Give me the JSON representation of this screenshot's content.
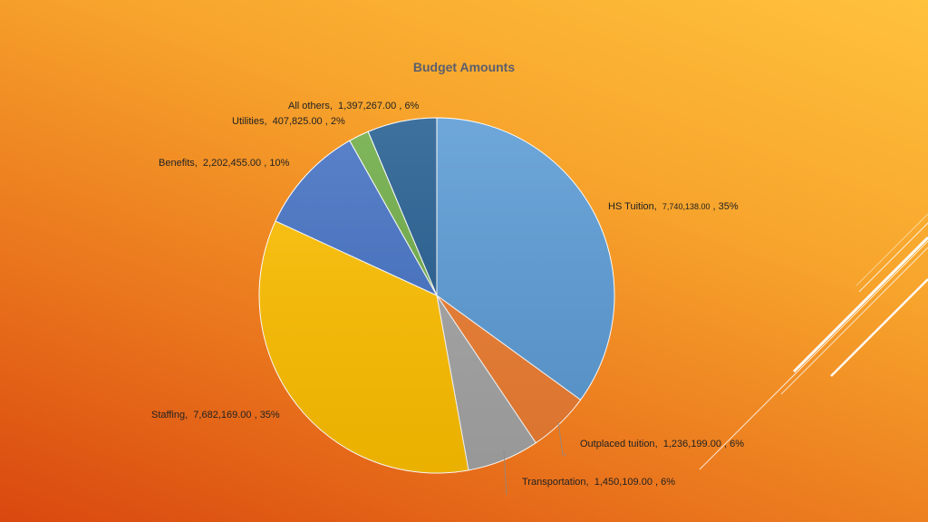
{
  "chart_data": {
    "type": "pie",
    "title": "Budget Amounts",
    "slices": [
      {
        "label": "HS Tuition",
        "value": 7740138.0,
        "value_text": "7,740,138.00",
        "percent_text": "35%",
        "color": "#5b9bd5"
      },
      {
        "label": "Outplaced tuition",
        "value": 1236199.0,
        "value_text": "1,236,199.00",
        "percent_text": "6%",
        "color": "#ed7d31"
      },
      {
        "label": "Transportation",
        "value": 1450109.0,
        "value_text": "1,450,109.00",
        "percent_text": "6%",
        "color": "#a5a5a5"
      },
      {
        "label": "Staffing",
        "value": 7682169.0,
        "value_text": "7,682,169.00",
        "percent_text": "35%",
        "color": "#ffc000"
      },
      {
        "label": "Benefits",
        "value": 2202455.0,
        "value_text": "2,202,455.00",
        "percent_text": "10%",
        "color": "#4472c4"
      },
      {
        "label": "Utilities",
        "value": 407825.0,
        "value_text": "407,825.00",
        "percent_text": "2%",
        "color": "#70ad47"
      },
      {
        "label": "All others",
        "value": 1397267.0,
        "value_text": "1,397,267.00",
        "percent_text": "6%",
        "color": "#255e91"
      }
    ]
  }
}
